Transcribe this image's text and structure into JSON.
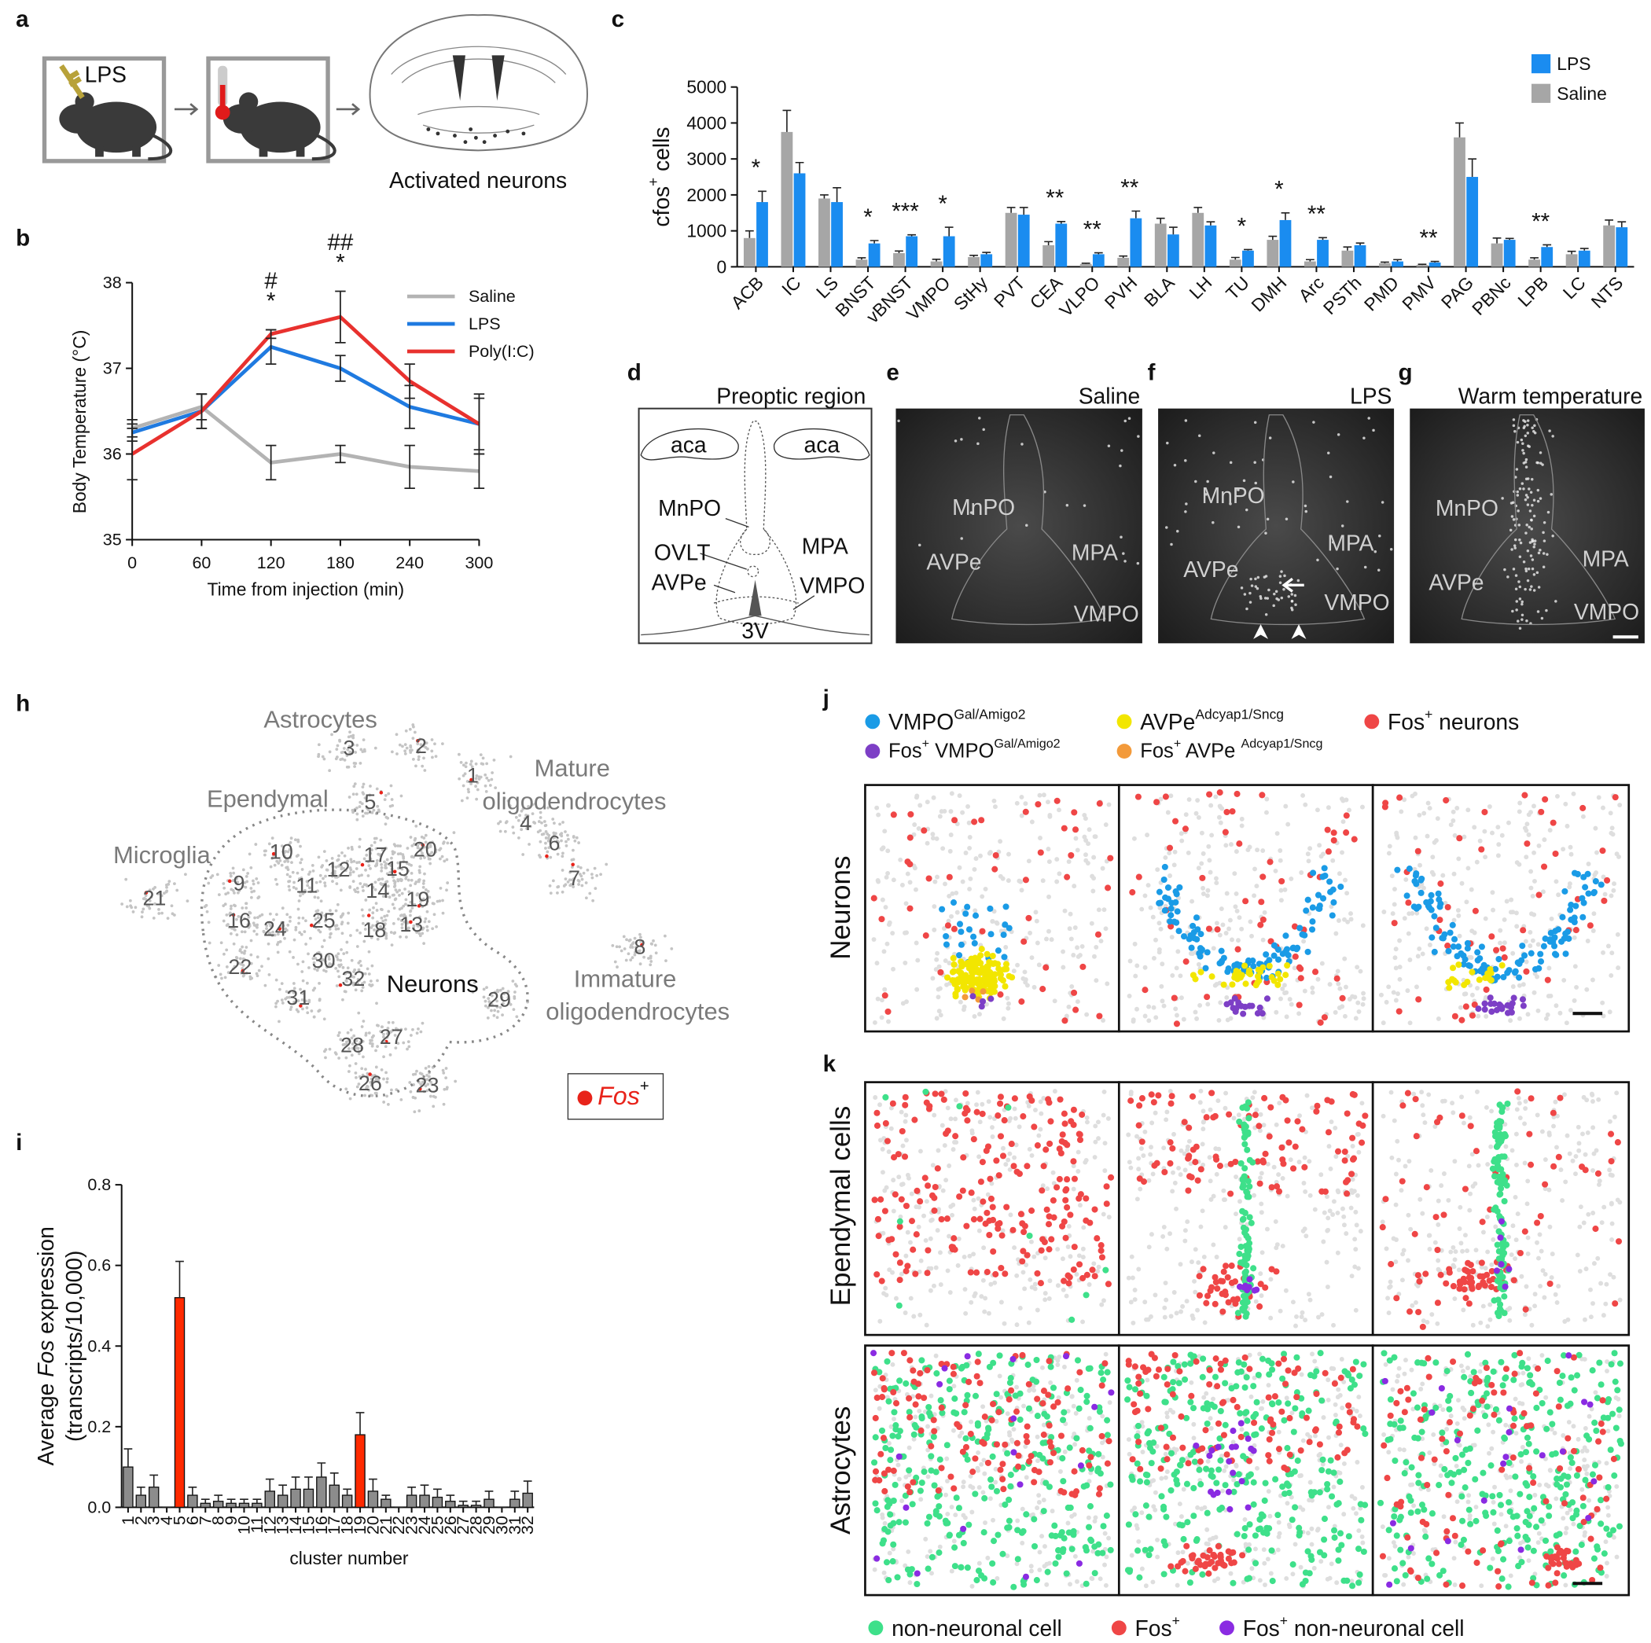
{
  "panel_labels": [
    "a",
    "b",
    "c",
    "d",
    "e",
    "f",
    "g",
    "h",
    "i",
    "j",
    "k"
  ],
  "panel_a": {
    "injection": "LPS",
    "caption": "Activated neurons"
  },
  "chart_data": [
    {
      "type": "line",
      "x": [
        0,
        60,
        120,
        180,
        240,
        300
      ],
      "xlim": [
        0,
        300
      ],
      "xticks": [
        0,
        60,
        120,
        180,
        240,
        300
      ],
      "ylim": [
        35,
        38
      ],
      "yticks": [
        35,
        36,
        37,
        38
      ],
      "xlabel": "Time from injection (min)",
      "ylabel": "Body Temperature (°C)",
      "legend": "right",
      "series": [
        {
          "name": "Saline",
          "color": "#b3b3b3",
          "values": [
            36.3,
            36.55,
            35.9,
            36.0,
            35.85,
            35.8
          ],
          "errors": [
            0.1,
            0.15,
            0.2,
            0.1,
            0.25,
            0.2
          ]
        },
        {
          "name": "LPS",
          "color": "#1f7ae0",
          "values": [
            36.25,
            36.5,
            37.25,
            37.0,
            36.55,
            36.35
          ],
          "errors": [
            0.1,
            0.2,
            0.2,
            0.15,
            0.25,
            0.35
          ]
        },
        {
          "name": "Poly(I:C)",
          "color": "#e8312e",
          "values": [
            36.0,
            36.5,
            37.4,
            37.6,
            36.85,
            36.35
          ],
          "errors": [
            0.3,
            0.2,
            0.05,
            0.3,
            0.2,
            0.3
          ]
        }
      ],
      "annotations": [
        {
          "x": 120,
          "label": "*"
        },
        {
          "x": 120,
          "label": "#"
        },
        {
          "x": 180,
          "label": "*"
        },
        {
          "x": 180,
          "label": "##"
        }
      ]
    },
    {
      "type": "bar",
      "categories": [
        "ACB",
        "IC",
        "LS",
        "BNST",
        "vBNST",
        "VMPO",
        "StHy",
        "PVT",
        "CEA",
        "VLPO",
        "PVH",
        "BLA",
        "LH",
        "TU",
        "DMH",
        "Arc",
        "PSTh",
        "PMD",
        "PMV",
        "PAG",
        "PBNc",
        "LPB",
        "LC",
        "NTS"
      ],
      "ylim": [
        0,
        5000
      ],
      "yticks": [
        0,
        1000,
        2000,
        3000,
        4000,
        5000
      ],
      "ylabel": [
        "cfos",
        "+",
        " cells"
      ],
      "legend": "upper right",
      "series": [
        {
          "name": "LPS",
          "color": "#1a8cf0",
          "values": [
            1800,
            2600,
            1800,
            650,
            850,
            850,
            350,
            1450,
            1200,
            350,
            1350,
            900,
            1150,
            450,
            1300,
            750,
            600,
            150,
            120,
            2500,
            750,
            550,
            450,
            1100
          ],
          "errors": [
            300,
            300,
            400,
            80,
            40,
            250,
            50,
            200,
            60,
            40,
            200,
            200,
            100,
            30,
            200,
            60,
            60,
            50,
            30,
            500,
            40,
            60,
            60,
            150
          ]
        },
        {
          "name": "Saline",
          "color": "#a6a6a6",
          "values": [
            800,
            3750,
            1900,
            200,
            380,
            150,
            270,
            1500,
            600,
            80,
            250,
            1200,
            1500,
            200,
            750,
            150,
            450,
            100,
            50,
            3600,
            650,
            200,
            350,
            1150
          ],
          "errors": [
            200,
            600,
            100,
            50,
            60,
            60,
            50,
            150,
            100,
            20,
            50,
            150,
            150,
            60,
            100,
            50,
            100,
            30,
            20,
            400,
            150,
            50,
            80,
            150
          ]
        }
      ],
      "annotations": [
        {
          "x": "ACB",
          "label": "*"
        },
        {
          "x": "BNST",
          "label": "*"
        },
        {
          "x": "vBNST",
          "label": "***"
        },
        {
          "x": "VMPO",
          "label": "*"
        },
        {
          "x": "CEA",
          "label": "**"
        },
        {
          "x": "VLPO",
          "label": "**"
        },
        {
          "x": "PVH",
          "label": "**"
        },
        {
          "x": "TU",
          "label": "*"
        },
        {
          "x": "DMH",
          "label": "*"
        },
        {
          "x": "Arc",
          "label": "**"
        },
        {
          "x": "PMV",
          "label": "**"
        },
        {
          "x": "LPB",
          "label": "**"
        }
      ]
    },
    {
      "type": "bar",
      "categories": [
        "1",
        "2",
        "3",
        "4",
        "5",
        "6",
        "7",
        "8",
        "9",
        "10",
        "11",
        "12",
        "13",
        "14",
        "15",
        "16",
        "17",
        "18",
        "19",
        "20",
        "21",
        "22",
        "23",
        "24",
        "25",
        "26",
        "27",
        "28",
        "29",
        "30",
        "31",
        "32"
      ],
      "values": [
        0.1,
        0.03,
        0.05,
        0,
        0.52,
        0.03,
        0.01,
        0.015,
        0.01,
        0.01,
        0.01,
        0.04,
        0.03,
        0.045,
        0.045,
        0.075,
        0.055,
        0.03,
        0.18,
        0.04,
        0.02,
        0,
        0.03,
        0.03,
        0.025,
        0.015,
        0.005,
        0.005,
        0.02,
        0,
        0.02,
        0.035
      ],
      "errors": [
        0.045,
        0.02,
        0.03,
        0,
        0.09,
        0.02,
        0.01,
        0.015,
        0.01,
        0.01,
        0.01,
        0.03,
        0.025,
        0.03,
        0.03,
        0.035,
        0.03,
        0.015,
        0.055,
        0.03,
        0.01,
        0,
        0.02,
        0.025,
        0.02,
        0.015,
        0.01,
        0.01,
        0.02,
        0,
        0.02,
        0.03
      ],
      "colors": [
        "#8c8c8c",
        "#8c8c8c",
        "#8c8c8c",
        "#8c8c8c",
        "#ff2a00",
        "#8c8c8c",
        "#8c8c8c",
        "#8c8c8c",
        "#8c8c8c",
        "#8c8c8c",
        "#8c8c8c",
        "#8c8c8c",
        "#8c8c8c",
        "#8c8c8c",
        "#8c8c8c",
        "#8c8c8c",
        "#8c8c8c",
        "#8c8c8c",
        "#ff2a00",
        "#8c8c8c",
        "#8c8c8c",
        "#8c8c8c",
        "#8c8c8c",
        "#8c8c8c",
        "#8c8c8c",
        "#8c8c8c",
        "#8c8c8c",
        "#8c8c8c",
        "#8c8c8c",
        "#8c8c8c",
        "#8c8c8c",
        "#8c8c8c"
      ],
      "ylim": [
        0,
        0.8
      ],
      "yticks": [
        {
          "value": 0,
          "label": "0.0"
        },
        0.2,
        0.4,
        0.6,
        0.8
      ],
      "xlabel": "cluster number",
      "ylabel": [
        "Average ",
        "Fos",
        " expression",
        "(transcripts/10,000)"
      ]
    }
  ],
  "panel_d": {
    "title": "Preoptic region",
    "labels": [
      "aca",
      "aca",
      "MnPO",
      "OVLT",
      "AVPe",
      "MPA",
      "VMPO",
      "3V"
    ]
  },
  "panel_e": {
    "title": "Saline",
    "labels": [
      "MnPO",
      "AVPe",
      "MPA",
      "VMPO"
    ]
  },
  "panel_f": {
    "title": "LPS",
    "labels": [
      "MnPO",
      "AVPe",
      "MPA",
      "VMPO"
    ]
  },
  "panel_g": {
    "title": "Warm temperature",
    "labels": [
      "MnPO",
      "AVPe",
      "MPA",
      "VMPO"
    ]
  },
  "panel_h": {
    "cell_types": [
      "Astrocytes",
      "Ependymal",
      "Microglia",
      "Mature",
      "oligodendrocytes",
      "Neurons",
      "Immature",
      "oligodendrocytes"
    ],
    "clusters": [
      "1",
      "2",
      "3",
      "4",
      "5",
      "6",
      "7",
      "8",
      "9",
      "10",
      "11",
      "12",
      "13",
      "14",
      "15",
      "16",
      "17",
      "18",
      "19",
      "20",
      "21",
      "22",
      "23",
      "24",
      "25",
      "26",
      "27",
      "28",
      "29",
      "30",
      "31",
      "32"
    ],
    "legend": [
      "Fos",
      "+"
    ],
    "fos_color": "#e8231a"
  },
  "panel_j": {
    "row_label": "Neurons",
    "legend": [
      {
        "parts": [
          "VMPO",
          "Gal/Amigo2"
        ],
        "color": "#1a9be6"
      },
      {
        "parts": [
          "AVPe",
          "Adcyap1/Sncg"
        ],
        "color": "#f2e600"
      },
      {
        "parts": [
          "Fos",
          "+",
          " neurons"
        ],
        "color": "#ef4646"
      },
      {
        "parts": [
          "Fos",
          "+",
          " VMPO",
          "Gal/Amigo2"
        ],
        "color": "#7d3fc6"
      },
      {
        "parts": [
          "Fos",
          "+",
          " AVPe ",
          "Adcyap1/Sncg"
        ],
        "color": "#f39a3a"
      }
    ]
  },
  "panel_k": {
    "row_labels": [
      "Ependymal cells",
      "Astrocytes"
    ],
    "legend": [
      {
        "parts": [
          "non-neuronal cell"
        ],
        "color": "#3ee08a"
      },
      {
        "parts": [
          "Fos",
          "+"
        ],
        "color": "#ef4646"
      },
      {
        "parts": [
          "Fos",
          "+",
          " non-neuronal cell"
        ],
        "color": "#8a2be2"
      }
    ]
  }
}
